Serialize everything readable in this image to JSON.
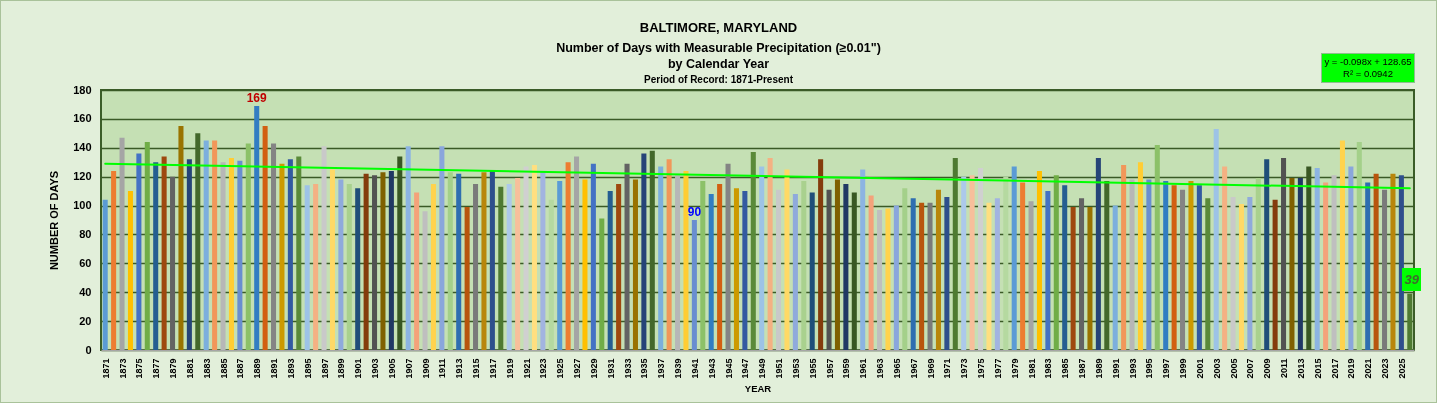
{
  "chart_data": {
    "type": "bar",
    "title": "BALTIMORE, MARYLAND",
    "subtitle": "Number of Days with Measurable Precipitation (≥0.01\")\nby Calendar Year",
    "xlabel": "YEAR",
    "ylabel": "NUMBER OF DAYS",
    "annotations": [
      "Period of Record: 1871-Present",
      "y = -0.098x + 128.65",
      "R² = 0.0942"
    ],
    "x": [
      1871,
      1872,
      1873,
      1874,
      1875,
      1876,
      1877,
      1878,
      1879,
      1880,
      1881,
      1882,
      1883,
      1884,
      1885,
      1886,
      1887,
      1888,
      1889,
      1890,
      1891,
      1892,
      1893,
      1894,
      1895,
      1896,
      1897,
      1898,
      1899,
      1900,
      1901,
      1902,
      1903,
      1904,
      1905,
      1906,
      1907,
      1908,
      1909,
      1910,
      1911,
      1912,
      1913,
      1914,
      1915,
      1916,
      1917,
      1918,
      1919,
      1920,
      1921,
      1922,
      1923,
      1924,
      1925,
      1926,
      1927,
      1928,
      1929,
      1930,
      1931,
      1932,
      1933,
      1934,
      1935,
      1936,
      1937,
      1938,
      1939,
      1940,
      1941,
      1942,
      1943,
      1944,
      1945,
      1946,
      1947,
      1948,
      1949,
      1950,
      1951,
      1952,
      1953,
      1954,
      1955,
      1956,
      1957,
      1958,
      1959,
      1960,
      1961,
      1962,
      1963,
      1964,
      1965,
      1966,
      1967,
      1968,
      1969,
      1970,
      1971,
      1972,
      1973,
      1974,
      1975,
      1976,
      1977,
      1978,
      1979,
      1980,
      1981,
      1982,
      1983,
      1984,
      1985,
      1986,
      1987,
      1988,
      1989,
      1990,
      1991,
      1992,
      1993,
      1994,
      1995,
      1996,
      1997,
      1998,
      1999,
      2000,
      2001,
      2002,
      2003,
      2004,
      2005,
      2006,
      2007,
      2008,
      2009,
      2010,
      2011,
      2012,
      2013,
      2014,
      2015,
      2016,
      2017,
      2018,
      2019,
      2020,
      2021,
      2022,
      2023,
      2024,
      2025,
      2026
    ],
    "series": [
      {
        "values": [
          104,
          124,
          147,
          110,
          136,
          144,
          130,
          134,
          120,
          155,
          132,
          150,
          145,
          145,
          130,
          133,
          131,
          143,
          169,
          155,
          143,
          129,
          132,
          134,
          114,
          115,
          141,
          125,
          118,
          115,
          112,
          122,
          121,
          123,
          124,
          134,
          141,
          109,
          96,
          115,
          141,
          123,
          122,
          99,
          115,
          123,
          124,
          113,
          115,
          119,
          127,
          128,
          123,
          104,
          117,
          130,
          134,
          118,
          129,
          91,
          110,
          115,
          129,
          118,
          136,
          138,
          127,
          132,
          121,
          124,
          90,
          117,
          108,
          115,
          129,
          112,
          110,
          137,
          127,
          133,
          111,
          125,
          108,
          117,
          109,
          132,
          111,
          118,
          115,
          109,
          125,
          107,
          97,
          98,
          100,
          112,
          105,
          102,
          102,
          111,
          106,
          133,
          120,
          121,
          126,
          102,
          105,
          120,
          127,
          116,
          103,
          124,
          110,
          121,
          114,
          99,
          105,
          99,
          133,
          117,
          100,
          128,
          118,
          130,
          118,
          142,
          117,
          114,
          111,
          117,
          114,
          105,
          153,
          127,
          106,
          101,
          106,
          119,
          132,
          104,
          133,
          119,
          119,
          127,
          126,
          116,
          121,
          145,
          127,
          144,
          116,
          122,
          111,
          122,
          121,
          39
        ],
        "value_labels": [
          null,
          null,
          null,
          null,
          null,
          null,
          null,
          null,
          null,
          null,
          null,
          null,
          null,
          null,
          null,
          null,
          null,
          null,
          "169",
          null,
          null,
          null,
          null,
          null,
          null,
          null,
          null,
          null,
          null,
          null,
          null,
          null,
          null,
          null,
          null,
          null,
          null,
          null,
          null,
          null,
          null,
          null,
          null,
          null,
          null,
          null,
          null,
          null,
          null,
          null,
          null,
          null,
          null,
          null,
          null,
          null,
          null,
          null,
          null,
          null,
          null,
          null,
          null,
          null,
          null,
          null,
          null,
          null,
          null,
          null,
          "90",
          null,
          null,
          null,
          null,
          null,
          null,
          null,
          null,
          null,
          null,
          null,
          null,
          null,
          null,
          null,
          null,
          null,
          null,
          null,
          null,
          null,
          null,
          null,
          null,
          null,
          null,
          null,
          null,
          null,
          null,
          null,
          null,
          null,
          null,
          null,
          null,
          null,
          null,
          null,
          null,
          null,
          null,
          null,
          null,
          null,
          null,
          null,
          null,
          null,
          null,
          null,
          null,
          null,
          null,
          null,
          null,
          null,
          null,
          null,
          null,
          null,
          null,
          null,
          null,
          null,
          null,
          null,
          null,
          null,
          null,
          null,
          null,
          null,
          null,
          null,
          null,
          null,
          null,
          null,
          null,
          null,
          null,
          null,
          null,
          "39"
        ],
        "colors": [
          "#5b9bd5",
          "#ed7d31",
          "#a5a5a5",
          "#ffc000",
          "#4472c4",
          "#70ad47",
          "#255e91",
          "#9e480e",
          "#636363",
          "#997300",
          "#264478",
          "#43682b",
          "#7cafdd",
          "#f1975a",
          "#b7b7b7",
          "#ffcd33",
          "#698ed0",
          "#8cc168",
          "#327dc2",
          "#d26012",
          "#848484",
          "#cc9a00",
          "#335aa1",
          "#5a8a39",
          "#9dc3e6",
          "#f4b183",
          "#c9c9c9",
          "#ffd966",
          "#8faadc",
          "#a9d18e",
          "#1f4e79",
          "#843c0c",
          "#525252",
          "#7f6000",
          "#203864",
          "#385723",
          "#8cb4e2",
          "#f4a27a",
          "#bfbfbf",
          "#ffd34d",
          "#8aa6dc",
          "#a4d08a",
          "#2e6eb0",
          "#b8550d",
          "#7a7a7a",
          "#b8860b",
          "#2e4f8c",
          "#4e7a32",
          "#acc9ea",
          "#f7bf9b",
          "#d0d0d0",
          "#ffdf80",
          "#a2b4e0",
          "#b5d9a0",
          "#5b9bd5",
          "#ed7d31",
          "#a5a5a5",
          "#ffc000",
          "#4472c4",
          "#70ad47",
          "#255e91",
          "#9e480e",
          "#636363",
          "#997300",
          "#264478",
          "#43682b",
          "#7cafdd",
          "#f1975a",
          "#b7b7b7",
          "#ffcd33",
          "#698ed0",
          "#8cc168",
          "#327dc2",
          "#d26012",
          "#848484",
          "#cc9a00",
          "#335aa1",
          "#5a8a39",
          "#9dc3e6",
          "#f4b183",
          "#c9c9c9",
          "#ffd966",
          "#8faadc",
          "#a9d18e",
          "#1f4e79",
          "#843c0c",
          "#525252",
          "#7f6000",
          "#203864",
          "#385723",
          "#8cb4e2",
          "#f4a27a",
          "#bfbfbf",
          "#ffd34d",
          "#8aa6dc",
          "#a4d08a",
          "#2e6eb0",
          "#b8550d",
          "#7a7a7a",
          "#b8860b",
          "#2e4f8c",
          "#4e7a32",
          "#acc9ea",
          "#f7bf9b",
          "#d0d0d0",
          "#ffdf80",
          "#a2b4e0",
          "#b5d9a0",
          "#5b9bd5",
          "#ed7d31",
          "#a5a5a5",
          "#ffc000",
          "#4472c4",
          "#70ad47",
          "#255e91",
          "#9e480e",
          "#636363",
          "#997300",
          "#264478",
          "#43682b",
          "#7cafdd",
          "#f1975a",
          "#b7b7b7",
          "#ffcd33",
          "#698ed0",
          "#8cc168",
          "#327dc2",
          "#d26012",
          "#848484",
          "#cc9a00",
          "#335aa1",
          "#5a8a39",
          "#9dc3e6",
          "#f4b183",
          "#c9c9c9",
          "#ffd966",
          "#8faadc",
          "#a9d18e",
          "#1f4e79",
          "#843c0c",
          "#525252",
          "#7f6000",
          "#203864",
          "#385723",
          "#8cb4e2",
          "#f4a27a",
          "#bfbfbf",
          "#ffd34d",
          "#8aa6dc",
          "#a4d08a",
          "#2e6eb0",
          "#b8550d",
          "#7a7a7a",
          "#b8860b",
          "#2e4f8c",
          "#4e7a32"
        ]
      },
      {
        "type": "line",
        "x": [
          1871,
          2026
        ],
        "values": [
          129,
          112
        ],
        "color": "#00ff00"
      }
    ],
    "xlim": [
      1870.5,
      2026.5
    ],
    "xticks": [
      1871,
      1873,
      1875,
      1877,
      1879,
      1881,
      1883,
      1885,
      1887,
      1889,
      1891,
      1893,
      1895,
      1897,
      1899,
      1901,
      1903,
      1905,
      1907,
      1909,
      1911,
      1913,
      1915,
      1917,
      1919,
      1921,
      1923,
      1925,
      1927,
      1929,
      1931,
      1933,
      1935,
      1937,
      1939,
      1941,
      1943,
      1945,
      1947,
      1949,
      1951,
      1953,
      1955,
      1957,
      1959,
      1961,
      1963,
      1965,
      1967,
      1969,
      1971,
      1973,
      1975,
      1977,
      1979,
      1981,
      1983,
      1985,
      1987,
      1989,
      1991,
      1993,
      1995,
      1997,
      1999,
      2001,
      2003,
      2005,
      2007,
      2009,
      2011,
      2013,
      2015,
      2017,
      2019,
      2021,
      2023,
      2025
    ],
    "ylim": [
      0,
      180
    ],
    "yticks": [
      0,
      20,
      40,
      60,
      80,
      100,
      120,
      140,
      160,
      180
    ],
    "grid": "y"
  }
}
